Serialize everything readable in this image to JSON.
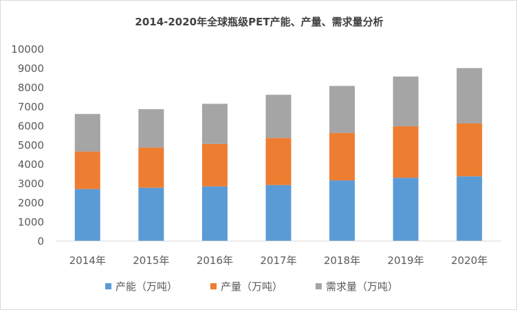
{
  "chart_data": {
    "type": "bar",
    "stacked": true,
    "title": "2014-2020年全球瓶级PET产能、产量、需求量分析",
    "xlabel": "",
    "ylabel": "",
    "categories": [
      "2014年",
      "2015年",
      "2016年",
      "2017年",
      "2018年",
      "2019年",
      "2020年"
    ],
    "ylim": [
      0,
      10000
    ],
    "yticks": [
      0,
      1000,
      2000,
      3000,
      4000,
      5000,
      6000,
      7000,
      8000,
      9000,
      10000
    ],
    "grid": false,
    "legend_position": "bottom",
    "series": [
      {
        "name": "产能（万吨）",
        "color": "#5b9bd5",
        "values": [
          2690,
          2760,
          2830,
          2900,
          3140,
          3280,
          3350
        ]
      },
      {
        "name": "产量（万吨）",
        "color": "#ed7d31",
        "values": [
          1950,
          2090,
          2210,
          2450,
          2470,
          2680,
          2760
        ]
      },
      {
        "name": "需求量（万吨）",
        "color": "#a5a5a5",
        "values": [
          1960,
          2000,
          2090,
          2250,
          2450,
          2590,
          2880
        ]
      }
    ]
  }
}
